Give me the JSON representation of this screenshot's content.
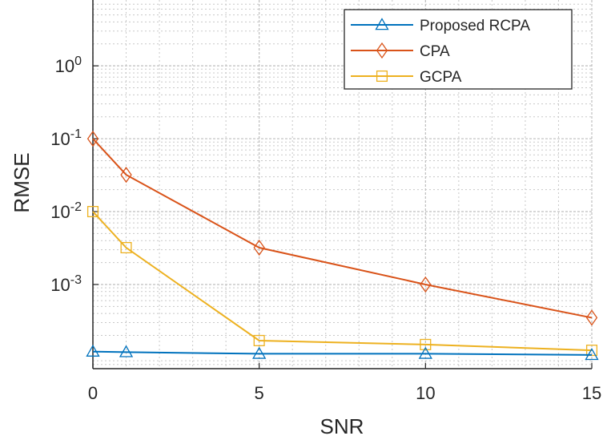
{
  "chart_data": {
    "type": "line",
    "xlabel": "SNR",
    "ylabel": "RMSE",
    "y_scale": "log",
    "xlim": [
      0,
      15
    ],
    "ylim": [
      7e-05,
      8
    ],
    "grid": true,
    "legend_position": "top-right",
    "x_ticks": [
      0,
      5,
      10,
      15
    ],
    "x_tick_labels": [
      "0",
      "5",
      "10",
      "15"
    ],
    "y_ticks": [
      {
        "value": 0.001,
        "base": "10",
        "exp": "-3"
      },
      {
        "value": 0.01,
        "base": "10",
        "exp": "-2"
      },
      {
        "value": 0.1,
        "base": "10",
        "exp": "-1"
      },
      {
        "value": 1,
        "base": "10",
        "exp": "0"
      }
    ],
    "x": [
      0,
      1,
      5,
      10,
      15
    ],
    "series": [
      {
        "name": "Proposed RCPA",
        "marker": "triangle",
        "color": "#0072BD",
        "values": [
          0.00012,
          0.000118,
          0.000112,
          0.000112,
          0.000108
        ]
      },
      {
        "name": "CPA",
        "marker": "diamond",
        "color": "#D95319",
        "values": [
          0.1,
          0.032,
          0.0032,
          0.001,
          0.00035
        ]
      },
      {
        "name": "GCPA",
        "marker": "square",
        "color": "#EDB120",
        "values": [
          0.01,
          0.0032,
          0.00017,
          0.00015,
          0.000125
        ]
      }
    ]
  }
}
